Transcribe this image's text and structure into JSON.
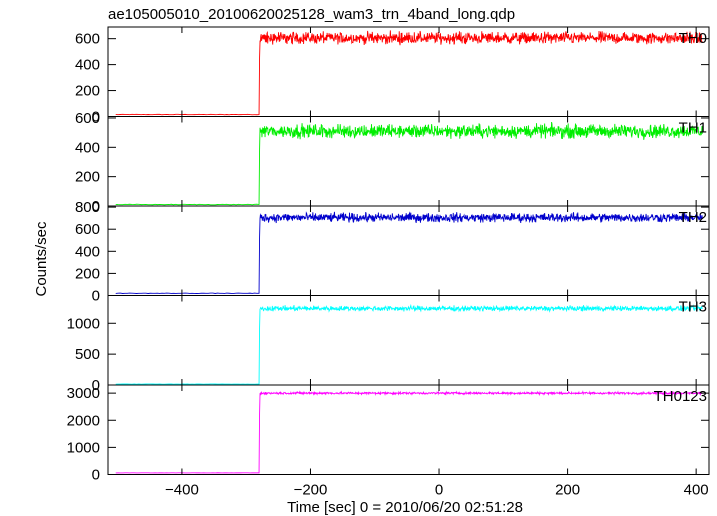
{
  "title": "ae105005010_20100620025128_wam3_trn_4band_long.qdp",
  "ylabel": "Counts/sec",
  "xlabel": "Time [sec] 0 = 2010/06/20 02:51:28",
  "chart_data": {
    "type": "line",
    "title": "ae105005010_20100620025128_wam3_trn_4band_long.qdp",
    "xlabel": "Time [sec] 0 = 2010/06/20 02:51:28",
    "ylabel": "Counts/sec",
    "xlim": [
      -515,
      420
    ],
    "x_ticks": [
      -400,
      -200,
      0,
      200,
      400
    ],
    "x_tick_labels": [
      "−400",
      "−200",
      "0",
      "200",
      "400"
    ],
    "step_time": -280,
    "x_end": 410,
    "grid": false,
    "panels": [
      {
        "name": "TH0",
        "color": "#ff0000",
        "ylim": [
          0,
          690
        ],
        "yticks": [
          0,
          200,
          400,
          600
        ],
        "ytick_labels": [
          "0",
          "200",
          "400",
          "600"
        ],
        "pre_level": 15,
        "post_level": 605,
        "noise": 45,
        "pre_range": [
          10,
          20
        ],
        "post_range": [
          520,
          680
        ]
      },
      {
        "name": "TH1",
        "color": "#00ee00",
        "ylim": [
          0,
          610
        ],
        "yticks": [
          0,
          200,
          400,
          600
        ],
        "ytick_labels": [
          "0",
          "200",
          "400",
          "600"
        ],
        "pre_level": 10,
        "post_level": 510,
        "noise": 45,
        "pre_range": [
          5,
          15
        ],
        "post_range": [
          410,
          610
        ]
      },
      {
        "name": "TH2",
        "color": "#0000cc",
        "ylim": [
          0,
          810
        ],
        "yticks": [
          0,
          200,
          400,
          600,
          800
        ],
        "ytick_labels": [
          "0",
          "200",
          "400",
          "600",
          "800"
        ],
        "pre_level": 20,
        "post_level": 705,
        "noise": 40,
        "pre_range": [
          15,
          25
        ],
        "post_range": [
          600,
          800
        ]
      },
      {
        "name": "TH3",
        "color": "#00ffff",
        "ylim": [
          0,
          1450
        ],
        "yticks": [
          0,
          500,
          1000
        ],
        "ytick_labels": [
          "0",
          "500",
          "1000"
        ],
        "pre_level": 15,
        "post_level": 1240,
        "noise": 40,
        "pre_range": [
          10,
          20
        ],
        "post_range": [
          1150,
          1350
        ]
      },
      {
        "name": "TH0123",
        "color": "#ff00ff",
        "ylim": [
          0,
          3300
        ],
        "yticks": [
          0,
          1000,
          2000,
          3000
        ],
        "ytick_labels": [
          "0",
          "1000",
          "2000",
          "3000"
        ],
        "pre_level": 60,
        "post_level": 3000,
        "noise": 40,
        "pre_range": [
          50,
          70
        ],
        "post_range": [
          2850,
          3150
        ]
      }
    ]
  }
}
